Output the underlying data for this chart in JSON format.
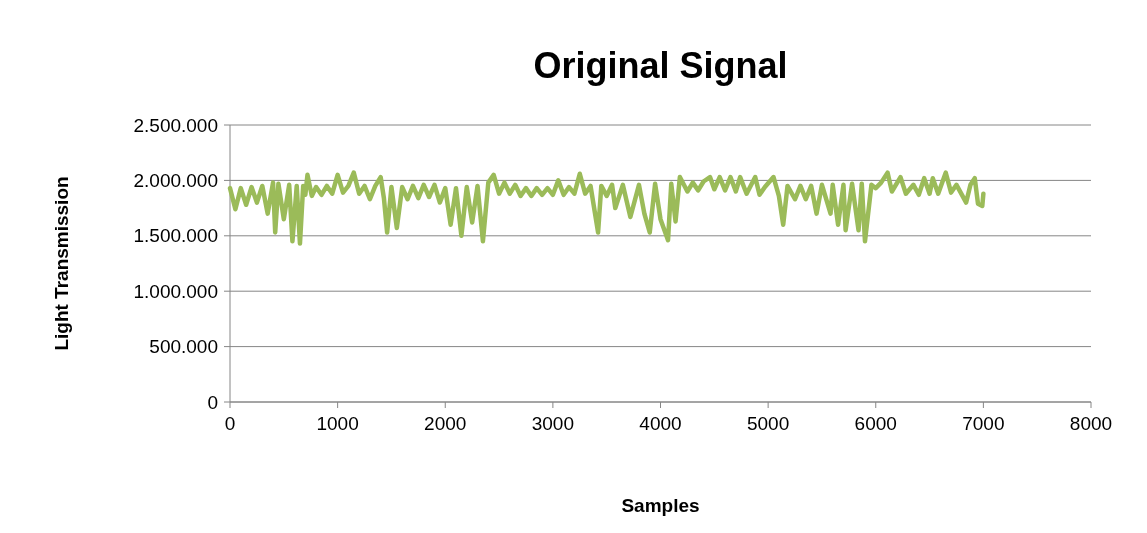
{
  "chart_data": {
    "type": "line",
    "title": "Original Signal",
    "xlabel": "Samples",
    "ylabel": "Light Transmission",
    "xlim": [
      0,
      8000
    ],
    "xticks": [
      0,
      1000,
      2000,
      3000,
      4000,
      5000,
      6000,
      7000,
      8000
    ],
    "ylim": [
      0,
      2500000
    ],
    "yticks": [
      {
        "value": 0,
        "label": "0"
      },
      {
        "value": 500000,
        "label": "500.000"
      },
      {
        "value": 1000000,
        "label": "1.000.000"
      },
      {
        "value": 1500000,
        "label": "1.500.000"
      },
      {
        "value": 2000000,
        "label": "2.000.000"
      },
      {
        "value": 2500000,
        "label": "2.500.000"
      }
    ],
    "grid": "y",
    "marker": "none",
    "line_style": "solid",
    "series": [
      {
        "color": "#9bbb59",
        "x": [
          0,
          50,
          100,
          150,
          200,
          250,
          300,
          350,
          400,
          420,
          450,
          500,
          550,
          580,
          620,
          650,
          680,
          700,
          720,
          760,
          800,
          850,
          900,
          950,
          1000,
          1050,
          1100,
          1150,
          1200,
          1250,
          1300,
          1350,
          1400,
          1430,
          1460,
          1500,
          1550,
          1600,
          1650,
          1700,
          1750,
          1800,
          1850,
          1900,
          1950,
          2000,
          2050,
          2100,
          2150,
          2200,
          2250,
          2300,
          2350,
          2400,
          2450,
          2500,
          2550,
          2600,
          2650,
          2700,
          2750,
          2800,
          2850,
          2900,
          2950,
          3000,
          3050,
          3100,
          3150,
          3200,
          3250,
          3300,
          3350,
          3420,
          3450,
          3500,
          3550,
          3580,
          3650,
          3720,
          3800,
          3850,
          3900,
          3950,
          4000,
          4070,
          4100,
          4140,
          4180,
          4250,
          4300,
          4350,
          4400,
          4460,
          4500,
          4550,
          4600,
          4650,
          4700,
          4740,
          4800,
          4880,
          4920,
          4970,
          5050,
          5100,
          5140,
          5180,
          5250,
          5300,
          5350,
          5400,
          5450,
          5500,
          5580,
          5600,
          5650,
          5700,
          5720,
          5780,
          5840,
          5870,
          5900,
          5960,
          6000,
          6050,
          6110,
          6150,
          6230,
          6280,
          6350,
          6400,
          6450,
          6500,
          6530,
          6580,
          6650,
          6700,
          6750,
          6840,
          6880,
          6920,
          6950,
          6990,
          7000
        ],
        "values": [
          1930000,
          1740000,
          1930000,
          1780000,
          1940000,
          1800000,
          1950000,
          1700000,
          1980000,
          1530000,
          1970000,
          1650000,
          1960000,
          1450000,
          1950000,
          1430000,
          1950000,
          1870000,
          2050000,
          1860000,
          1940000,
          1870000,
          1950000,
          1880000,
          2050000,
          1890000,
          1950000,
          2070000,
          1880000,
          1950000,
          1830000,
          1950000,
          2030000,
          1840000,
          1530000,
          1940000,
          1570000,
          1940000,
          1830000,
          1950000,
          1840000,
          1960000,
          1850000,
          1960000,
          1800000,
          1930000,
          1600000,
          1930000,
          1500000,
          1940000,
          1620000,
          1950000,
          1450000,
          1980000,
          2050000,
          1880000,
          1980000,
          1880000,
          1960000,
          1860000,
          1930000,
          1860000,
          1930000,
          1870000,
          1930000,
          1870000,
          2000000,
          1870000,
          1940000,
          1880000,
          2060000,
          1880000,
          1950000,
          1530000,
          1950000,
          1860000,
          1960000,
          1750000,
          1960000,
          1670000,
          1960000,
          1700000,
          1530000,
          1970000,
          1650000,
          1460000,
          1970000,
          1630000,
          2030000,
          1900000,
          1980000,
          1910000,
          1990000,
          2030000,
          1920000,
          2030000,
          1910000,
          2030000,
          1900000,
          2030000,
          1880000,
          2030000,
          1870000,
          1940000,
          2030000,
          1860000,
          1600000,
          1950000,
          1830000,
          1950000,
          1830000,
          1950000,
          1700000,
          1960000,
          1700000,
          1960000,
          1600000,
          1960000,
          1550000,
          1970000,
          1550000,
          1970000,
          1450000,
          1960000,
          1930000,
          1980000,
          2070000,
          1900000,
          2030000,
          1880000,
          1960000,
          1870000,
          2020000,
          1880000,
          2020000,
          1880000,
          2070000,
          1890000,
          1960000,
          1800000,
          1960000,
          2020000,
          1790000,
          1770000,
          1880000
        ]
      }
    ]
  }
}
